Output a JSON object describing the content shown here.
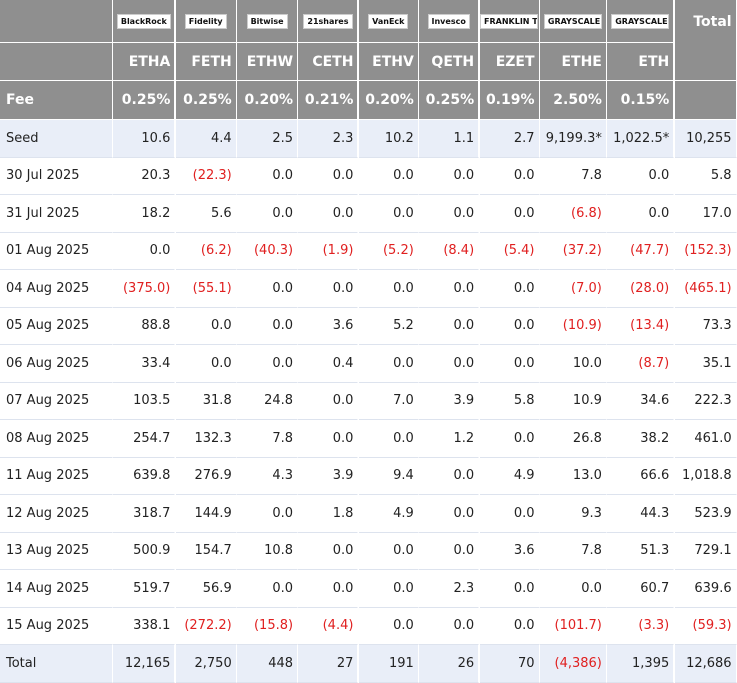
{
  "header": {
    "logos": [
      "BlackRock",
      "Fidelity",
      "Bitwise",
      "21shares",
      "VanEck",
      "Invesco",
      "FRANKLIN TEMPLETON",
      "GRAYSCALE",
      "GRAYSCALE"
    ],
    "total_label": "Total",
    "tickers": [
      "ETHA",
      "FETH",
      "ETHW",
      "CETH",
      "ETHV",
      "QETH",
      "EZET",
      "ETHE",
      "ETH"
    ],
    "fee_label": "Fee",
    "fees": [
      "0.25%",
      "0.25%",
      "0.20%",
      "0.21%",
      "0.20%",
      "0.25%",
      "0.19%",
      "2.50%",
      "0.15%"
    ]
  },
  "table": {
    "rows": [
      [
        "Seed",
        "10.6",
        "4.4",
        "2.5",
        "2.3",
        "10.2",
        "1.1",
        "2.7",
        "9,199.3*",
        "1,022.5*",
        "10,255"
      ],
      [
        "30 Jul 2025",
        "20.3",
        "(22.3)",
        "0.0",
        "0.0",
        "0.0",
        "0.0",
        "0.0",
        "7.8",
        "0.0",
        "5.8"
      ],
      [
        "31 Jul 2025",
        "18.2",
        "5.6",
        "0.0",
        "0.0",
        "0.0",
        "0.0",
        "0.0",
        "(6.8)",
        "0.0",
        "17.0"
      ],
      [
        "01 Aug 2025",
        "0.0",
        "(6.2)",
        "(40.3)",
        "(1.9)",
        "(5.2)",
        "(8.4)",
        "(5.4)",
        "(37.2)",
        "(47.7)",
        "(152.3)"
      ],
      [
        "04 Aug 2025",
        "(375.0)",
        "(55.1)",
        "0.0",
        "0.0",
        "0.0",
        "0.0",
        "0.0",
        "(7.0)",
        "(28.0)",
        "(465.1)"
      ],
      [
        "05 Aug 2025",
        "88.8",
        "0.0",
        "0.0",
        "3.6",
        "5.2",
        "0.0",
        "0.0",
        "(10.9)",
        "(13.4)",
        "73.3"
      ],
      [
        "06 Aug 2025",
        "33.4",
        "0.0",
        "0.0",
        "0.4",
        "0.0",
        "0.0",
        "0.0",
        "10.0",
        "(8.7)",
        "35.1"
      ],
      [
        "07 Aug 2025",
        "103.5",
        "31.8",
        "24.8",
        "0.0",
        "7.0",
        "3.9",
        "5.8",
        "10.9",
        "34.6",
        "222.3"
      ],
      [
        "08 Aug 2025",
        "254.7",
        "132.3",
        "7.8",
        "0.0",
        "0.0",
        "1.2",
        "0.0",
        "26.8",
        "38.2",
        "461.0"
      ],
      [
        "11 Aug 2025",
        "639.8",
        "276.9",
        "4.3",
        "3.9",
        "9.4",
        "0.0",
        "4.9",
        "13.0",
        "66.6",
        "1,018.8"
      ],
      [
        "12 Aug 2025",
        "318.7",
        "144.9",
        "0.0",
        "1.8",
        "4.9",
        "0.0",
        "0.0",
        "9.3",
        "44.3",
        "523.9"
      ],
      [
        "13 Aug 2025",
        "500.9",
        "154.7",
        "10.8",
        "0.0",
        "0.0",
        "0.0",
        "3.6",
        "7.8",
        "51.3",
        "729.1"
      ],
      [
        "14 Aug 2025",
        "519.7",
        "56.9",
        "0.0",
        "0.0",
        "0.0",
        "2.3",
        "0.0",
        "0.0",
        "60.7",
        "639.6"
      ],
      [
        "15 Aug 2025",
        "338.1",
        "(272.2)",
        "(15.8)",
        "(4.4)",
        "0.0",
        "0.0",
        "0.0",
        "(101.7)",
        "(3.3)",
        "(59.3)"
      ],
      [
        "Total",
        "12,165",
        "2,750",
        "448",
        "27",
        "191",
        "26",
        "70",
        "(4,386)",
        "1,395",
        "12,686"
      ]
    ]
  }
}
